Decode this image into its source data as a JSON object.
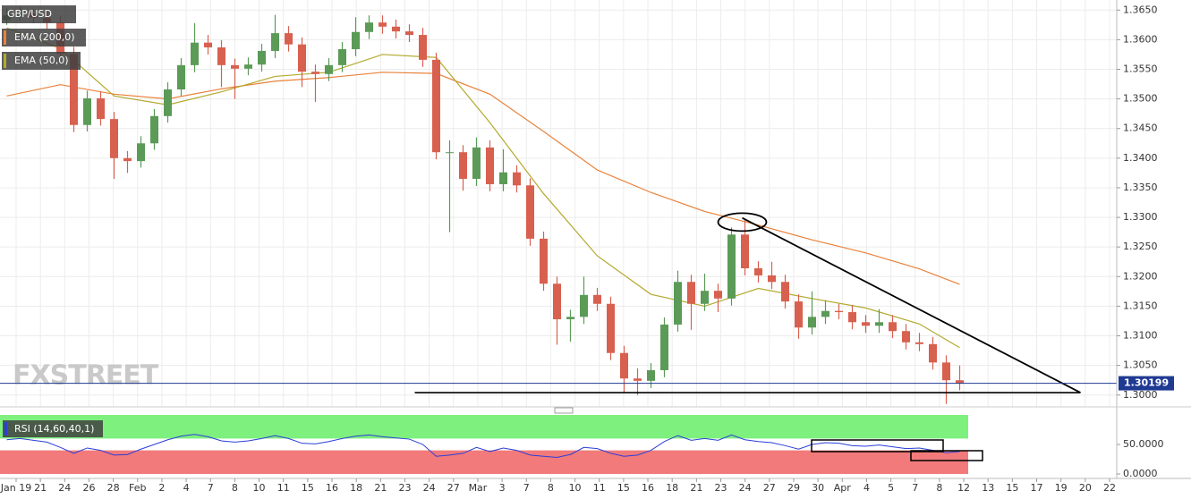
{
  "chart_data": {
    "type": "candlestick",
    "symbol": "GBP/USD",
    "watermark": "FXSTREET",
    "dates": [
      "Jan 19",
      "21",
      "24",
      "26",
      "28",
      "Feb",
      "2",
      "4",
      "7",
      "8",
      "10",
      "11",
      "15",
      "16",
      "18",
      "21",
      "23",
      "24",
      "27",
      "Mar",
      "3",
      "7",
      "8",
      "10",
      "11",
      "15",
      "16",
      "18",
      "21",
      "23",
      "24",
      "27",
      "29",
      "30",
      "Apr",
      "4",
      "5",
      "7",
      "8",
      "12",
      "13",
      "15",
      "17",
      "19",
      "20",
      "22"
    ],
    "xlim": [
      -0.5,
      82.7
    ],
    "ylim": [
      1.298,
      1.3667
    ],
    "yticks": [
      {
        "value": 1.365,
        "label": "1.3650"
      },
      {
        "value": 1.36,
        "label": "1.3600"
      },
      {
        "value": 1.355,
        "label": "1.3550"
      },
      {
        "value": 1.35,
        "label": "1.3500"
      },
      {
        "value": 1.345,
        "label": "1.3450"
      },
      {
        "value": 1.34,
        "label": "1.3400"
      },
      {
        "value": 1.335,
        "label": "1.3350"
      },
      {
        "value": 1.33,
        "label": "1.3300"
      },
      {
        "value": 1.325,
        "label": "1.3250"
      },
      {
        "value": 1.32,
        "label": "1.3200"
      },
      {
        "value": 1.315,
        "label": "1.3150"
      },
      {
        "value": 1.31,
        "label": "1.3100"
      },
      {
        "value": 1.305,
        "label": "1.3050"
      },
      {
        "value": 1.3,
        "label": "1.3000"
      }
    ],
    "grid": true,
    "up_color": "#5b9a57",
    "down_color": "#d8604f",
    "candles": [
      [
        1.3633,
        1.3653,
        1.3625,
        1.3641
      ],
      [
        1.3641,
        1.3656,
        1.3632,
        1.3644
      ],
      [
        1.3644,
        1.3652,
        1.3628,
        1.3637
      ],
      [
        1.3637,
        1.3648,
        1.3618,
        1.3629
      ],
      [
        1.3629,
        1.364,
        1.3565,
        1.3576
      ],
      [
        1.3576,
        1.3588,
        1.3444,
        1.3456
      ],
      [
        1.3456,
        1.3514,
        1.3445,
        1.3501
      ],
      [
        1.3501,
        1.3512,
        1.3455,
        1.3466
      ],
      [
        1.3466,
        1.3478,
        1.3365,
        1.34
      ],
      [
        1.34,
        1.3412,
        1.3375,
        1.3395
      ],
      [
        1.3395,
        1.3437,
        1.3384,
        1.3425
      ],
      [
        1.3425,
        1.3483,
        1.3414,
        1.3471
      ],
      [
        1.3471,
        1.3528,
        1.346,
        1.3516
      ],
      [
        1.3516,
        1.3569,
        1.3505,
        1.3557
      ],
      [
        1.3557,
        1.3628,
        1.3545,
        1.3595
      ],
      [
        1.3595,
        1.3608,
        1.3575,
        1.3587
      ],
      [
        1.3587,
        1.3599,
        1.352,
        1.3557
      ],
      [
        1.3557,
        1.3568,
        1.35,
        1.3551
      ],
      [
        1.3551,
        1.357,
        1.354,
        1.3558
      ],
      [
        1.3558,
        1.3593,
        1.3546,
        1.3581
      ],
      [
        1.3581,
        1.3642,
        1.3569,
        1.3611
      ],
      [
        1.3611,
        1.3623,
        1.358,
        1.3592
      ],
      [
        1.3592,
        1.3604,
        1.352,
        1.3546
      ],
      [
        1.3546,
        1.3558,
        1.3495,
        1.3542
      ],
      [
        1.3542,
        1.3569,
        1.353,
        1.3557
      ],
      [
        1.3557,
        1.3596,
        1.3545,
        1.3584
      ],
      [
        1.3584,
        1.3638,
        1.3572,
        1.3613
      ],
      [
        1.3613,
        1.3641,
        1.3601,
        1.3629
      ],
      [
        1.3629,
        1.3641,
        1.361,
        1.3622
      ],
      [
        1.3622,
        1.3634,
        1.3602,
        1.3614
      ],
      [
        1.3614,
        1.3626,
        1.3596,
        1.3608
      ],
      [
        1.3608,
        1.362,
        1.3554,
        1.3566
      ],
      [
        1.3566,
        1.3578,
        1.3398,
        1.341
      ],
      [
        1.341,
        1.343,
        1.3275,
        1.341
      ],
      [
        1.341,
        1.3422,
        1.3345,
        1.3365
      ],
      [
        1.3365,
        1.3435,
        1.3353,
        1.3418
      ],
      [
        1.3418,
        1.343,
        1.3344,
        1.3356
      ],
      [
        1.3356,
        1.3415,
        1.3344,
        1.3376
      ],
      [
        1.3376,
        1.3388,
        1.3342,
        1.3354
      ],
      [
        1.3354,
        1.3366,
        1.3252,
        1.3264
      ],
      [
        1.3264,
        1.3276,
        1.3176,
        1.3188
      ],
      [
        1.3188,
        1.32,
        1.3085,
        1.3128
      ],
      [
        1.3128,
        1.3144,
        1.309,
        1.3132
      ],
      [
        1.3132,
        1.32,
        1.312,
        1.3169
      ],
      [
        1.3169,
        1.3181,
        1.3142,
        1.3154
      ],
      [
        1.3154,
        1.3166,
        1.3059,
        1.3071
      ],
      [
        1.3071,
        1.3083,
        1.3005,
        1.3028
      ],
      [
        1.3028,
        1.3045,
        1.3,
        1.3024
      ],
      [
        1.3024,
        1.3054,
        1.3012,
        1.3042
      ],
      [
        1.3042,
        1.3131,
        1.303,
        1.3119
      ],
      [
        1.3119,
        1.321,
        1.3107,
        1.3191
      ],
      [
        1.3191,
        1.3203,
        1.311,
        1.3154
      ],
      [
        1.3154,
        1.3205,
        1.3142,
        1.3176
      ],
      [
        1.3176,
        1.3188,
        1.314,
        1.3163
      ],
      [
        1.3163,
        1.3283,
        1.3151,
        1.3271
      ],
      [
        1.3271,
        1.3298,
        1.3202,
        1.3214
      ],
      [
        1.3214,
        1.3226,
        1.319,
        1.3202
      ],
      [
        1.3202,
        1.3225,
        1.3179,
        1.3191
      ],
      [
        1.3191,
        1.3203,
        1.3146,
        1.3158
      ],
      [
        1.3158,
        1.317,
        1.3095,
        1.3114
      ],
      [
        1.3114,
        1.3175,
        1.3102,
        1.3132
      ],
      [
        1.3132,
        1.316,
        1.312,
        1.3142
      ],
      [
        1.3142,
        1.3154,
        1.3128,
        1.314
      ],
      [
        1.314,
        1.3152,
        1.3111,
        1.3123
      ],
      [
        1.3123,
        1.3135,
        1.3105,
        1.3117
      ],
      [
        1.3117,
        1.3145,
        1.3105,
        1.3123
      ],
      [
        1.3123,
        1.3135,
        1.3096,
        1.3108
      ],
      [
        1.3108,
        1.312,
        1.3077,
        1.3089
      ],
      [
        1.3089,
        1.3105,
        1.3074,
        1.3086
      ],
      [
        1.3086,
        1.3098,
        1.3043,
        1.3055
      ],
      [
        1.3055,
        1.3067,
        1.2985,
        1.3025
      ],
      [
        1.3025,
        1.305,
        1.3008,
        1.302
      ]
    ],
    "series": [
      {
        "name": "EMA (200,0)",
        "color": "#e8823a",
        "x": [
          0,
          4,
          8,
          12,
          16,
          20,
          24,
          28,
          32,
          36,
          40,
          44,
          48,
          52,
          56,
          60,
          64,
          68,
          71
        ],
        "values": [
          1.3505,
          1.3524,
          1.3508,
          1.35,
          1.3517,
          1.353,
          1.3536,
          1.3545,
          1.3543,
          1.3508,
          1.3445,
          1.338,
          1.3342,
          1.331,
          1.3287,
          1.3262,
          1.324,
          1.3213,
          1.3187
        ]
      },
      {
        "name": "EMA (50,0)",
        "color": "#b3a92e",
        "x": [
          0,
          4,
          8,
          12,
          16,
          20,
          24,
          28,
          32,
          36,
          40,
          44,
          48,
          52,
          56,
          60,
          64,
          68,
          71
        ],
        "values": [
          1.362,
          1.3585,
          1.3505,
          1.349,
          1.3512,
          1.3538,
          1.3545,
          1.3575,
          1.357,
          1.346,
          1.334,
          1.3235,
          1.317,
          1.315,
          1.318,
          1.3163,
          1.3147,
          1.312,
          1.308
        ]
      }
    ],
    "last_price": 1.30199,
    "last_price_color": "#1f3a93",
    "support": {
      "x": [
        30.4,
        80
      ],
      "y": 1.3004
    },
    "trendline": {
      "x": [
        54.8,
        80
      ],
      "y": [
        1.3299,
        1.3004
      ]
    },
    "highlight": {
      "x": 54.8,
      "y": 1.3292
    },
    "rsi": {
      "name": "RSI (14,60,40,1)",
      "color": "#2a3fd8",
      "ylim": [
        0,
        100
      ],
      "upper": 60,
      "lower": 40,
      "yticks": [
        {
          "value": 50,
          "label": "50.0000"
        },
        {
          "value": 0,
          "label": "0.0000"
        }
      ],
      "values": [
        58,
        60,
        57,
        54,
        45,
        35,
        44,
        40,
        32,
        33,
        42,
        50,
        58,
        64,
        67,
        63,
        56,
        54,
        56,
        60,
        65,
        60,
        52,
        51,
        55,
        60,
        64,
        66,
        63,
        61,
        59,
        50,
        30,
        32,
        35,
        45,
        38,
        44,
        40,
        32,
        30,
        28,
        33,
        45,
        43,
        35,
        30,
        32,
        40,
        55,
        65,
        57,
        60,
        57,
        66,
        58,
        55,
        53,
        48,
        42,
        50,
        53,
        52,
        48,
        47,
        49,
        46,
        43,
        44,
        40,
        36,
        38
      ]
    }
  }
}
